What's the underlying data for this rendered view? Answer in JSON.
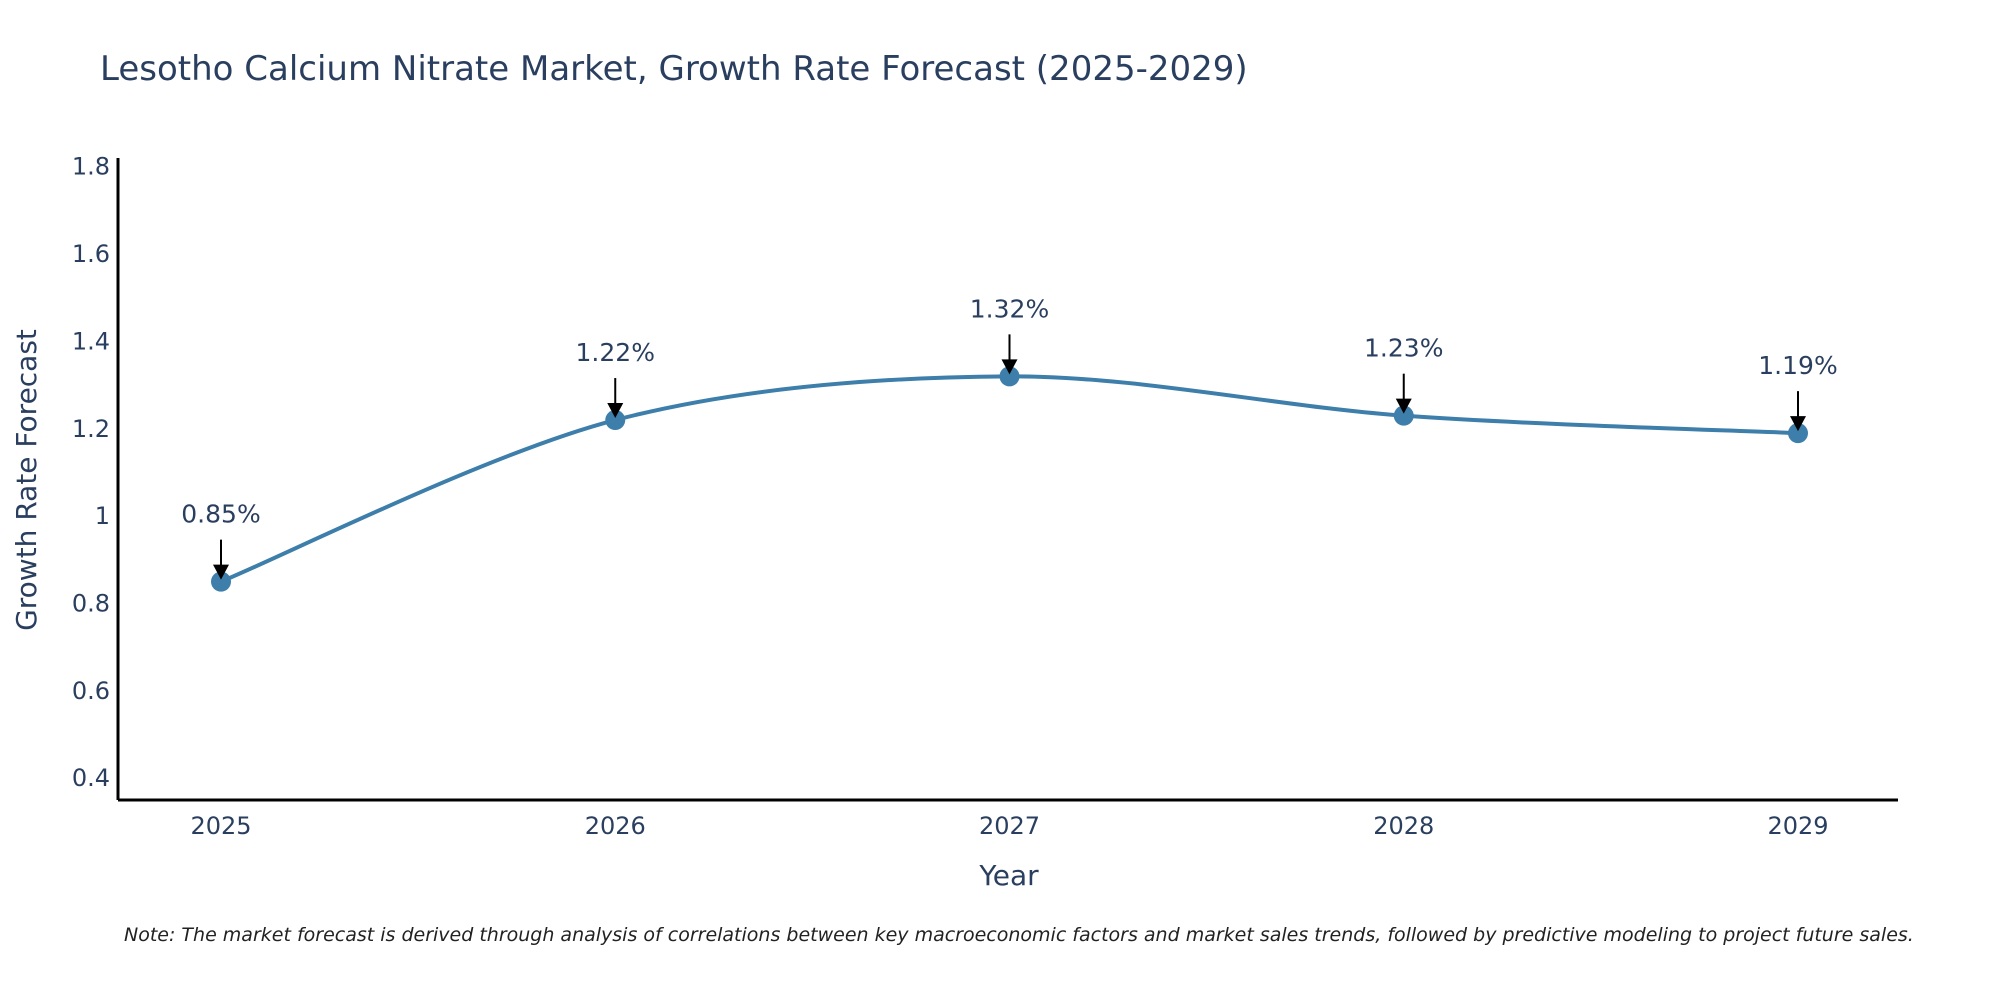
{
  "chart_data": {
    "type": "line",
    "title": "Lesotho Calcium Nitrate Market, Growth Rate Forecast (2025-2029)",
    "xlabel": "Year",
    "ylabel": "Growth Rate Forecast",
    "categories": [
      "2025",
      "2026",
      "2027",
      "2028",
      "2029"
    ],
    "series": [
      {
        "name": "Growth Rate Forecast",
        "values": [
          0.85,
          1.22,
          1.32,
          1.23,
          1.19
        ],
        "labels": [
          "0.85%",
          "1.22%",
          "1.32%",
          "1.23%",
          "1.19%"
        ]
      }
    ],
    "ylim": [
      0.35,
      1.82
    ],
    "yticks": [
      0.4,
      0.6,
      0.8,
      1,
      1.2,
      1.4,
      1.6,
      1.8
    ],
    "ytick_labels": [
      "0.4",
      "0.6",
      "0.8",
      "1",
      "1.2",
      "1.4",
      "1.6",
      "1.8"
    ],
    "line_shape": "spline",
    "grid": false,
    "legend": "none",
    "note": "Note: The market forecast is derived through analysis of correlations between key macroeconomic factors and market sales trends, followed by predictive modeling to project future sales.",
    "colors": {
      "line": "#3d7eaa",
      "marker": "#3d7eaa",
      "axis": "#000000",
      "arrow": "#000000",
      "text": "#2a3f5f"
    }
  }
}
